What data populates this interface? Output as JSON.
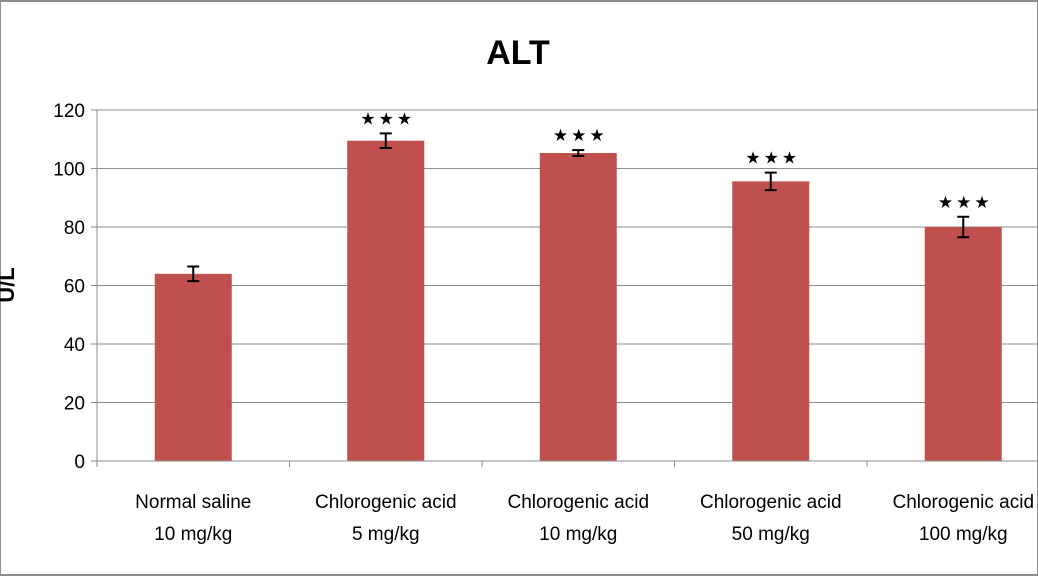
{
  "chart_data": {
    "type": "bar",
    "title": "ALT",
    "ylabel": "U/L",
    "xlabel": "",
    "ylim": [
      0,
      120
    ],
    "yticks": [
      0,
      20,
      40,
      60,
      80,
      100,
      120
    ],
    "grid": true,
    "legend": "none",
    "bar_color": "#c0504d",
    "categories": [
      [
        "Normal saline",
        "10 mg/kg"
      ],
      [
        "Chlorogenic acid",
        "5 mg/kg"
      ],
      [
        "Chlorogenic acid",
        "10 mg/kg"
      ],
      [
        "Chlorogenic acid",
        "50 mg/kg"
      ],
      [
        "Chlorogenic acid",
        "100 mg/kg"
      ]
    ],
    "values": [
      64,
      109.5,
      105.3,
      95.6,
      80
    ],
    "errors": [
      2.5,
      2.5,
      1.0,
      3.0,
      3.5
    ],
    "annotations": [
      "",
      "★★★",
      "★★★",
      "★★★",
      "★★★"
    ]
  }
}
